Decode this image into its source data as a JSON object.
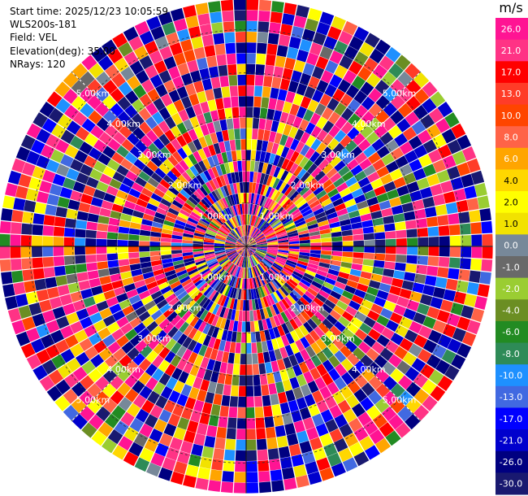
{
  "info": {
    "start_time": "Start time: 2025/12/23 10:05:59",
    "site": "WLS200s-181",
    "field": "Field: VEL",
    "elevation": "Elevation(deg): 35.00",
    "nrays": "NRays: 120"
  },
  "colorbar": {
    "unit": "m/s",
    "segments": [
      {
        "label": "26.0",
        "color": "#ff1493"
      },
      {
        "label": "21.0",
        "color": "#ff3385"
      },
      {
        "label": "17.0",
        "color": "#ff0000"
      },
      {
        "label": "13.0",
        "color": "#ff3c28"
      },
      {
        "label": "10.0",
        "color": "#ff4500"
      },
      {
        "label": "8.0",
        "color": "#ff6347"
      },
      {
        "label": "6.0",
        "color": "#ffa500"
      },
      {
        "label": "4.0",
        "color": "#ffd700"
      },
      {
        "label": "2.0",
        "color": "#ffff00"
      },
      {
        "label": "1.0",
        "color": "#f2e200"
      },
      {
        "label": "0.0",
        "color": "#778899"
      },
      {
        "label": "-1.0",
        "color": "#696969"
      },
      {
        "label": "-2.0",
        "color": "#9acd32"
      },
      {
        "label": "-4.0",
        "color": "#6b8e23"
      },
      {
        "label": "-6.0",
        "color": "#228b22"
      },
      {
        "label": "-8.0",
        "color": "#2e8b57"
      },
      {
        "label": "-10.0",
        "color": "#1e90ff"
      },
      {
        "label": "-13.0",
        "color": "#4169e1"
      },
      {
        "label": "-17.0",
        "color": "#0000ff"
      },
      {
        "label": "-21.0",
        "color": "#0000cd"
      },
      {
        "label": "-26.0",
        "color": "#000080"
      },
      {
        "label": "-30.0",
        "color": "#191970"
      }
    ]
  },
  "chart_data": {
    "type": "heatmap",
    "projection": "polar (PPI)",
    "field": "VEL",
    "units": "m/s",
    "elevation_deg": 35.0,
    "n_rays": 120,
    "n_range_gates": 23,
    "range_rings": [
      {
        "label": "1.00km"
      },
      {
        "label": "2.00km"
      },
      {
        "label": "3.00km"
      },
      {
        "label": "4.00km"
      },
      {
        "label": "5.00km"
      }
    ],
    "color_levels": [
      -30,
      -26,
      -21,
      -17,
      -13,
      -10,
      -8,
      -6,
      -4,
      -2,
      -1,
      0,
      1,
      2,
      4,
      6,
      8,
      10,
      13,
      17,
      21,
      26
    ],
    "value_distribution": "noise-like, mixed values across all color levels; strong positive (+26 to +21) and strong negative (-17 to -30) most common",
    "grid": true,
    "legend": "colorbar right"
  }
}
